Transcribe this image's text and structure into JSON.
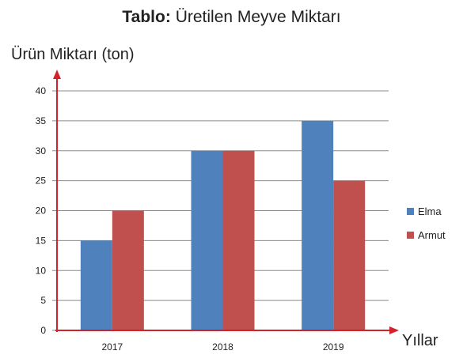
{
  "title": {
    "bold": "Tablo:",
    "rest": "Üretilen Meyve Miktarı"
  },
  "chart_data": {
    "type": "bar",
    "title": "Tablo: Üretilen Meyve Miktarı",
    "ylabel": "Ürün Miktarı (ton)",
    "xlabel": "Yıllar",
    "categories": [
      "2017",
      "2018",
      "2019"
    ],
    "series": [
      {
        "name": "Elma",
        "color": "#4F81BD",
        "values": [
          15,
          30,
          35
        ]
      },
      {
        "name": "Armut",
        "color": "#C0504D",
        "values": [
          20,
          30,
          25
        ]
      }
    ],
    "ylim": [
      0,
      40
    ],
    "yticks": [
      0,
      5,
      10,
      15,
      20,
      25,
      30,
      35,
      40
    ],
    "grid": true,
    "legend": "right",
    "axis_color": "#D2232A"
  }
}
